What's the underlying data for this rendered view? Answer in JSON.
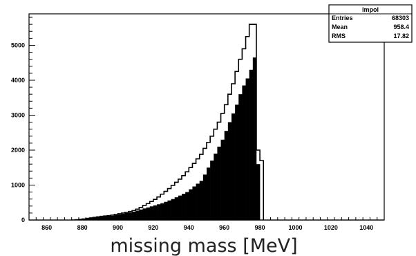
{
  "chart_data": {
    "type": "histogram",
    "xlabel": "missing mass [MeV]",
    "ylabel": "",
    "xlim": [
      850,
      1050
    ],
    "ylim": [
      0,
      5900
    ],
    "xticks_major": [
      860,
      880,
      900,
      920,
      940,
      960,
      980,
      1000,
      1020,
      1040
    ],
    "yticks_major": [
      0,
      1000,
      2000,
      3000,
      4000,
      5000
    ],
    "bin_width": 2,
    "stats_box": {
      "title": "lmpol",
      "rows": [
        {
          "label": "Entries",
          "value": "68303"
        },
        {
          "label": "Mean",
          "value": "958.4"
        },
        {
          "label": "RMS",
          "value": "17.82"
        }
      ]
    },
    "series": [
      {
        "style": "outline",
        "color": "#000000",
        "x": [
          876,
          878,
          880,
          882,
          884,
          886,
          888,
          890,
          892,
          894,
          896,
          898,
          900,
          902,
          904,
          906,
          908,
          910,
          912,
          914,
          916,
          918,
          920,
          922,
          924,
          926,
          928,
          930,
          932,
          934,
          936,
          938,
          940,
          942,
          944,
          946,
          948,
          950,
          952,
          954,
          956,
          958,
          960,
          962,
          964,
          966,
          968,
          970,
          972,
          974,
          976,
          978,
          980
        ],
        "values": [
          10,
          20,
          30,
          45,
          60,
          75,
          90,
          105,
          115,
          125,
          140,
          160,
          180,
          200,
          220,
          245,
          270,
          310,
          360,
          420,
          470,
          530,
          590,
          660,
          740,
          820,
          900,
          990,
          1080,
          1170,
          1270,
          1380,
          1500,
          1620,
          1750,
          1880,
          2050,
          2220,
          2400,
          2600,
          2800,
          3050,
          3300,
          3600,
          3900,
          4250,
          4600,
          4900,
          5250,
          5600,
          5600,
          2000,
          1700
        ]
      },
      {
        "style": "filled",
        "color": "#000000",
        "x": [
          870,
          872,
          874,
          876,
          878,
          880,
          882,
          884,
          886,
          888,
          890,
          892,
          894,
          896,
          898,
          900,
          902,
          904,
          906,
          908,
          910,
          912,
          914,
          916,
          918,
          920,
          922,
          924,
          926,
          928,
          930,
          932,
          934,
          936,
          938,
          940,
          942,
          944,
          946,
          948,
          950,
          952,
          954,
          956,
          958,
          960,
          962,
          964,
          966,
          968,
          970,
          972,
          974,
          976,
          978
        ],
        "values": [
          5,
          10,
          15,
          20,
          30,
          40,
          50,
          60,
          70,
          80,
          90,
          100,
          110,
          120,
          140,
          160,
          180,
          200,
          220,
          240,
          270,
          300,
          330,
          360,
          390,
          420,
          450,
          480,
          520,
          560,
          600,
          650,
          700,
          750,
          800,
          880,
          960,
          1040,
          1120,
          1300,
          1500,
          1700,
          1900,
          2100,
          2300,
          2550,
          2800,
          3050,
          3300,
          3600,
          3850,
          4050,
          4300,
          4650,
          1600
        ]
      }
    ]
  }
}
